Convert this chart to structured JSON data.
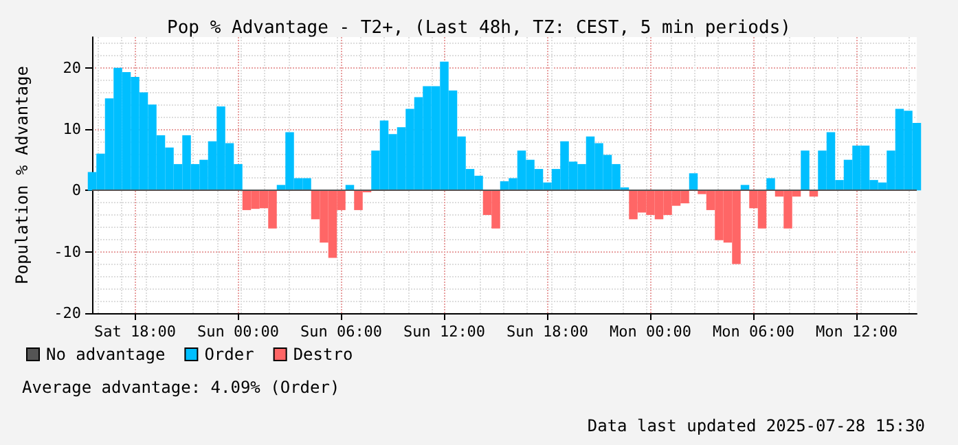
{
  "chart_data": {
    "type": "bar",
    "title": "Pop % Advantage - T2+, (Last 48h, TZ: CEST, 5 min periods)",
    "ylabel": "Population % Advantage",
    "x": [
      "2025-07-26T15:30",
      "2025-07-26T16:00",
      "2025-07-26T16:30",
      "2025-07-26T17:00",
      "2025-07-26T17:30",
      "2025-07-26T18:00",
      "2025-07-26T18:30",
      "2025-07-26T19:00",
      "2025-07-26T19:30",
      "2025-07-26T20:00",
      "2025-07-26T20:30",
      "2025-07-26T21:00",
      "2025-07-26T21:30",
      "2025-07-26T22:00",
      "2025-07-26T22:30",
      "2025-07-26T23:00",
      "2025-07-26T23:30",
      "2025-07-27T00:00",
      "2025-07-27T00:30",
      "2025-07-27T01:00",
      "2025-07-27T01:30",
      "2025-07-27T02:00",
      "2025-07-27T02:30",
      "2025-07-27T03:00",
      "2025-07-27T03:30",
      "2025-07-27T04:00",
      "2025-07-27T04:30",
      "2025-07-27T05:00",
      "2025-07-27T05:30",
      "2025-07-27T06:00",
      "2025-07-27T06:30",
      "2025-07-27T07:00",
      "2025-07-27T07:30",
      "2025-07-27T08:00",
      "2025-07-27T08:30",
      "2025-07-27T09:00",
      "2025-07-27T09:30",
      "2025-07-27T10:00",
      "2025-07-27T10:30",
      "2025-07-27T11:00",
      "2025-07-27T11:30",
      "2025-07-27T12:00",
      "2025-07-27T12:30",
      "2025-07-27T13:00",
      "2025-07-27T13:30",
      "2025-07-27T14:00",
      "2025-07-27T14:30",
      "2025-07-27T15:00",
      "2025-07-27T15:30",
      "2025-07-27T16:00",
      "2025-07-27T16:30",
      "2025-07-27T17:00",
      "2025-07-27T17:30",
      "2025-07-27T18:00",
      "2025-07-27T18:30",
      "2025-07-27T19:00",
      "2025-07-27T19:30",
      "2025-07-27T20:00",
      "2025-07-27T20:30",
      "2025-07-27T21:00",
      "2025-07-27T21:30",
      "2025-07-27T22:00",
      "2025-07-27T22:30",
      "2025-07-27T23:00",
      "2025-07-27T23:30",
      "2025-07-28T00:00",
      "2025-07-28T00:30",
      "2025-07-28T01:00",
      "2025-07-28T01:30",
      "2025-07-28T02:00",
      "2025-07-28T02:30",
      "2025-07-28T03:00",
      "2025-07-28T03:30",
      "2025-07-28T04:00",
      "2025-07-28T04:30",
      "2025-07-28T05:00",
      "2025-07-28T05:30",
      "2025-07-28T06:00",
      "2025-07-28T06:30",
      "2025-07-28T07:00",
      "2025-07-28T07:30",
      "2025-07-28T08:00",
      "2025-07-28T08:30",
      "2025-07-28T09:00",
      "2025-07-28T09:30",
      "2025-07-28T10:00",
      "2025-07-28T10:30",
      "2025-07-28T11:00",
      "2025-07-28T11:30",
      "2025-07-28T12:00",
      "2025-07-28T12:30",
      "2025-07-28T13:00",
      "2025-07-28T13:30",
      "2025-07-28T14:00",
      "2025-07-28T14:30",
      "2025-07-28T15:00",
      "2025-07-28T15:30"
    ],
    "series": [
      {
        "name": "No advantage",
        "color": "#555555",
        "values": [
          null,
          null,
          null,
          null,
          null,
          null,
          null,
          null,
          null,
          null,
          null,
          null,
          null,
          null,
          null,
          null,
          null,
          null,
          null,
          null,
          null,
          null,
          null,
          null,
          null,
          null,
          null,
          null,
          null,
          null,
          null,
          null,
          null,
          null,
          null,
          null,
          null,
          null,
          null,
          null,
          null,
          null,
          null,
          null,
          null,
          null,
          null,
          null,
          null,
          null,
          null,
          null,
          null,
          null,
          null,
          null,
          null,
          null,
          null,
          null,
          null,
          null,
          null,
          null,
          null,
          null,
          null,
          null,
          null,
          null,
          null,
          null,
          null,
          null,
          null,
          null,
          null,
          null,
          null,
          null,
          null,
          null,
          null,
          null,
          null,
          null,
          null,
          null,
          null,
          null,
          null,
          null,
          null,
          null,
          null,
          null,
          null
        ]
      },
      {
        "name": "Order",
        "color": "#00bfff",
        "values": [
          3,
          6,
          15,
          20,
          19.3,
          18.5,
          16,
          14,
          9,
          7,
          4.3,
          9,
          4.3,
          5,
          8,
          13.7,
          7.7,
          4.3,
          null,
          null,
          null,
          null,
          0.9,
          9.5,
          2,
          2,
          null,
          null,
          null,
          null,
          0.9,
          null,
          null,
          6.5,
          11.4,
          9.2,
          10.3,
          13.3,
          15.2,
          17,
          17,
          21,
          16.3,
          8.8,
          3.5,
          2.4,
          null,
          null,
          1.5,
          2,
          6.5,
          5,
          3.5,
          1.3,
          3.5,
          8,
          4.7,
          4.3,
          8.8,
          7.7,
          5.8,
          4.3,
          0.5,
          null,
          null,
          null,
          null,
          null,
          null,
          null,
          2.8,
          null,
          null,
          null,
          null,
          null,
          0.9,
          null,
          null,
          2,
          null,
          null,
          null,
          6.5,
          null,
          6.5,
          9.5,
          1.7,
          5,
          7.3,
          7.3,
          1.7,
          1.3,
          6.5,
          13.3,
          13,
          11
        ]
      },
      {
        "name": "Destro",
        "color": "#ff6666",
        "values": [
          null,
          null,
          null,
          null,
          null,
          null,
          null,
          null,
          null,
          null,
          null,
          null,
          null,
          null,
          null,
          null,
          null,
          null,
          -3.2,
          -3,
          -2.9,
          -6.2,
          null,
          null,
          null,
          null,
          -4.7,
          -8.5,
          -11,
          -3.2,
          null,
          -3.2,
          -0.3,
          null,
          null,
          null,
          null,
          null,
          null,
          null,
          null,
          null,
          null,
          null,
          null,
          null,
          -4,
          -6.2,
          null,
          null,
          null,
          null,
          null,
          null,
          null,
          null,
          null,
          null,
          null,
          null,
          null,
          null,
          null,
          -4.7,
          -3.6,
          -4,
          -4.7,
          -4,
          -2.5,
          -2.1,
          null,
          -0.6,
          -3.2,
          -8.1,
          -8.5,
          -12,
          null,
          -2.9,
          -6.2,
          null,
          -1,
          -6.2,
          -1,
          null,
          -1,
          null,
          null,
          null,
          null,
          null,
          null,
          null,
          null,
          null,
          null,
          null,
          null
        ]
      }
    ],
    "xlim": [
      "2025-07-26T15:30",
      "2025-07-28T15:30"
    ],
    "xticks": [
      {
        "value": "2025-07-26T18:00",
        "label": "Sat 18:00"
      },
      {
        "value": "2025-07-27T00:00",
        "label": "Sun 00:00"
      },
      {
        "value": "2025-07-27T06:00",
        "label": "Sun 06:00"
      },
      {
        "value": "2025-07-27T12:00",
        "label": "Sun 12:00"
      },
      {
        "value": "2025-07-27T18:00",
        "label": "Sun 18:00"
      },
      {
        "value": "2025-07-28T00:00",
        "label": "Mon 00:00"
      },
      {
        "value": "2025-07-28T06:00",
        "label": "Mon 06:00"
      },
      {
        "value": "2025-07-28T12:00",
        "label": "Mon 12:00"
      }
    ],
    "ylim": [
      -20,
      25
    ],
    "yticks": [
      -20,
      -10,
      0,
      10,
      20
    ],
    "ref_lines": [
      {
        "axis": "y",
        "value": 0,
        "color": "#555555"
      }
    ],
    "grid": true,
    "legend": "bottom left",
    "annotations": [
      "Average advantage: 4.09% (Order)",
      "Data last updated 2025-07-28 15:30"
    ]
  }
}
